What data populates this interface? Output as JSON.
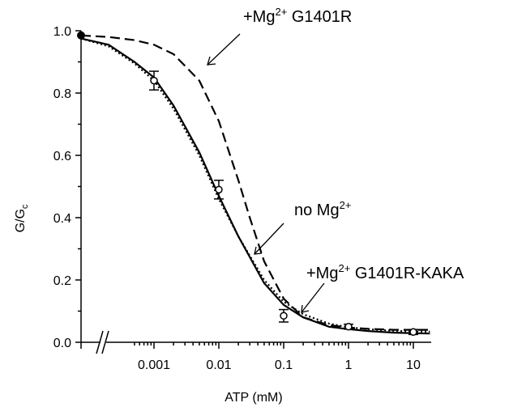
{
  "chart_data": {
    "type": "line",
    "xlabel": "ATP (mM)",
    "ylabel_main": "G/G",
    "ylabel_sub": "c",
    "xscale": "log",
    "xlim": [
      0.0001,
      20
    ],
    "ylim": [
      0,
      1
    ],
    "y_ticks": [
      {
        "value": 0.0,
        "label": "0.0"
      },
      {
        "value": 0.2,
        "label": "0.2"
      },
      {
        "value": 0.4,
        "label": "0.4"
      },
      {
        "value": 0.6,
        "label": "0.6"
      },
      {
        "value": 0.8,
        "label": "0.8"
      },
      {
        "value": 1.0,
        "label": "1.0"
      }
    ],
    "x_ticks": [
      {
        "value": 0.001,
        "label": "0.001"
      },
      {
        "value": 0.01,
        "label": "0.01"
      },
      {
        "value": 0.1,
        "label": "0.1"
      },
      {
        "value": 1,
        "label": "1"
      },
      {
        "value": 10,
        "label": "10"
      }
    ],
    "axis_break": true,
    "series": [
      {
        "name": "+Mg2+ G1401R",
        "style": "dashed",
        "x": [
          0.0001,
          0.0002,
          0.0005,
          0.001,
          0.002,
          0.005,
          0.01,
          0.02,
          0.03,
          0.05,
          0.1,
          0.2,
          0.5,
          1,
          2,
          5,
          10,
          18
        ],
        "y": [
          0.985,
          0.98,
          0.97,
          0.955,
          0.925,
          0.84,
          0.71,
          0.52,
          0.4,
          0.26,
          0.14,
          0.08,
          0.055,
          0.047,
          0.043,
          0.04,
          0.04,
          0.04
        ]
      },
      {
        "name": "no Mg2+",
        "style": "solid",
        "x": [
          0.0001,
          0.0002,
          0.0005,
          0.001,
          0.002,
          0.005,
          0.01,
          0.02,
          0.05,
          0.1,
          0.2,
          0.5,
          1,
          2,
          5,
          10,
          18
        ],
        "y": [
          0.975,
          0.955,
          0.9,
          0.85,
          0.76,
          0.61,
          0.47,
          0.34,
          0.19,
          0.12,
          0.08,
          0.05,
          0.042,
          0.036,
          0.031,
          0.029,
          0.028
        ]
      },
      {
        "name": "+Mg2+ G1401R-KAKA",
        "style": "dotted",
        "x": [
          0.0001,
          0.0002,
          0.0005,
          0.001,
          0.002,
          0.005,
          0.01,
          0.02,
          0.05,
          0.1,
          0.2,
          0.5,
          1,
          2,
          5,
          10,
          18
        ],
        "y": [
          0.975,
          0.95,
          0.895,
          0.84,
          0.75,
          0.6,
          0.46,
          0.34,
          0.2,
          0.13,
          0.09,
          0.06,
          0.048,
          0.042,
          0.037,
          0.035,
          0.034
        ]
      }
    ],
    "points": [
      {
        "x": 0.0001,
        "y": 0.985,
        "filled": true,
        "err": 0
      },
      {
        "x": 0.001,
        "y": 0.84,
        "filled": false,
        "err": 0.03
      },
      {
        "x": 0.01,
        "y": 0.49,
        "filled": false,
        "err": 0.03
      },
      {
        "x": 0.1,
        "y": 0.085,
        "filled": false,
        "err": 0.02
      },
      {
        "x": 1,
        "y": 0.05,
        "filled": false,
        "err": 0.008
      },
      {
        "x": 10,
        "y": 0.033,
        "filled": false,
        "err": 0.008
      }
    ],
    "annotations": [
      {
        "text": "+Mg",
        "sup": "2+",
        "after": " G1401R"
      },
      {
        "text": "no Mg",
        "sup": "2+",
        "after": ""
      },
      {
        "text": "+Mg",
        "sup": "2+",
        "after": " G1401R-KAKA"
      }
    ]
  }
}
